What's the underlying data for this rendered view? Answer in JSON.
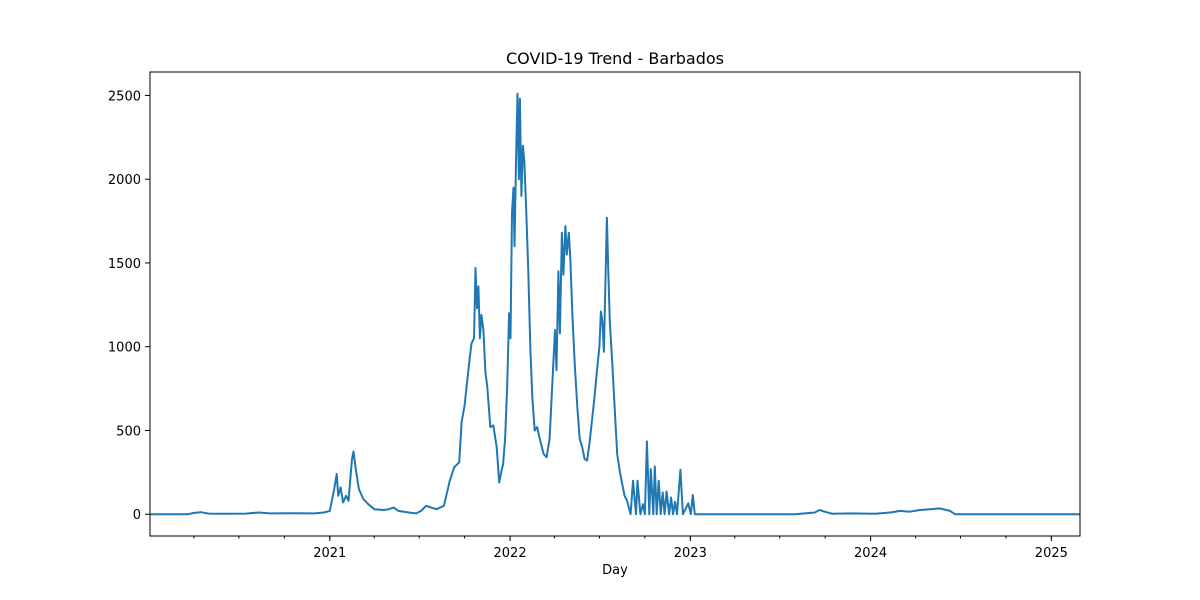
{
  "chart_data": {
    "type": "line",
    "title": "COVID-19 Trend - Barbados",
    "xlabel": "Day",
    "ylabel": "",
    "x_range": [
      "2020-01-03",
      "2025-02-28"
    ],
    "ylim": [
      -130,
      2640
    ],
    "y_ticks": [
      0,
      500,
      1000,
      1500,
      2000,
      2500
    ],
    "x_ticks": [
      {
        "date": "2021-01-01",
        "label": "2021"
      },
      {
        "date": "2022-01-01",
        "label": "2022"
      },
      {
        "date": "2023-01-01",
        "label": "2023"
      },
      {
        "date": "2024-01-01",
        "label": "2024"
      },
      {
        "date": "2025-01-01",
        "label": "2025"
      }
    ],
    "grid": false,
    "line_color": "#1f77b4",
    "series": [
      {
        "points": [
          [
            "2020-01-03",
            0
          ],
          [
            "2020-03-20",
            0
          ],
          [
            "2020-04-01",
            8
          ],
          [
            "2020-04-15",
            12
          ],
          [
            "2020-05-01",
            4
          ],
          [
            "2020-06-01",
            3
          ],
          [
            "2020-07-15",
            4
          ],
          [
            "2020-08-10",
            10
          ],
          [
            "2020-09-01",
            5
          ],
          [
            "2020-10-15",
            6
          ],
          [
            "2020-12-01",
            5
          ],
          [
            "2020-12-20",
            10
          ],
          [
            "2021-01-01",
            20
          ],
          [
            "2021-01-10",
            150
          ],
          [
            "2021-01-15",
            240
          ],
          [
            "2021-01-18",
            110
          ],
          [
            "2021-01-23",
            160
          ],
          [
            "2021-01-28",
            70
          ],
          [
            "2021-02-03",
            110
          ],
          [
            "2021-02-08",
            80
          ],
          [
            "2021-02-15",
            330
          ],
          [
            "2021-02-18",
            375
          ],
          [
            "2021-02-22",
            280
          ],
          [
            "2021-03-01",
            150
          ],
          [
            "2021-03-10",
            90
          ],
          [
            "2021-03-20",
            60
          ],
          [
            "2021-04-01",
            30
          ],
          [
            "2021-04-20",
            25
          ],
          [
            "2021-05-01",
            30
          ],
          [
            "2021-05-10",
            40
          ],
          [
            "2021-05-20",
            20
          ],
          [
            "2021-06-10",
            10
          ],
          [
            "2021-06-25",
            5
          ],
          [
            "2021-07-05",
            20
          ],
          [
            "2021-07-15",
            50
          ],
          [
            "2021-07-25",
            40
          ],
          [
            "2021-08-05",
            30
          ],
          [
            "2021-08-20",
            50
          ],
          [
            "2021-09-01",
            200
          ],
          [
            "2021-09-10",
            280
          ],
          [
            "2021-09-20",
            310
          ],
          [
            "2021-09-25",
            550
          ],
          [
            "2021-10-01",
            650
          ],
          [
            "2021-10-10",
            900
          ],
          [
            "2021-10-15",
            1020
          ],
          [
            "2021-10-20",
            1050
          ],
          [
            "2021-10-23",
            1470
          ],
          [
            "2021-10-26",
            1230
          ],
          [
            "2021-10-29",
            1360
          ],
          [
            "2021-11-01",
            1050
          ],
          [
            "2021-11-04",
            1190
          ],
          [
            "2021-11-08",
            1100
          ],
          [
            "2021-11-12",
            850
          ],
          [
            "2021-11-16",
            760
          ],
          [
            "2021-11-22",
            520
          ],
          [
            "2021-11-28",
            530
          ],
          [
            "2021-12-05",
            400
          ],
          [
            "2021-12-10",
            190
          ],
          [
            "2021-12-14",
            250
          ],
          [
            "2021-12-18",
            300
          ],
          [
            "2021-12-22",
            450
          ],
          [
            "2021-12-26",
            750
          ],
          [
            "2021-12-30",
            1200
          ],
          [
            "2022-01-02",
            1050
          ],
          [
            "2022-01-05",
            1800
          ],
          [
            "2022-01-08",
            1950
          ],
          [
            "2022-01-10",
            1600
          ],
          [
            "2022-01-13",
            2100
          ],
          [
            "2022-01-16",
            2510
          ],
          [
            "2022-01-19",
            2000
          ],
          [
            "2022-01-21",
            2480
          ],
          [
            "2022-01-24",
            1900
          ],
          [
            "2022-01-27",
            2200
          ],
          [
            "2022-01-30",
            2100
          ],
          [
            "2022-02-03",
            1800
          ],
          [
            "2022-02-07",
            1450
          ],
          [
            "2022-02-11",
            1000
          ],
          [
            "2022-02-15",
            700
          ],
          [
            "2022-02-20",
            500
          ],
          [
            "2022-02-25",
            520
          ],
          [
            "2022-03-02",
            450
          ],
          [
            "2022-03-10",
            360
          ],
          [
            "2022-03-16",
            340
          ],
          [
            "2022-03-22",
            450
          ],
          [
            "2022-03-28",
            800
          ],
          [
            "2022-04-02",
            1100
          ],
          [
            "2022-04-05",
            860
          ],
          [
            "2022-04-09",
            1450
          ],
          [
            "2022-04-12",
            1080
          ],
          [
            "2022-04-16",
            1680
          ],
          [
            "2022-04-19",
            1430
          ],
          [
            "2022-04-23",
            1720
          ],
          [
            "2022-04-26",
            1550
          ],
          [
            "2022-04-30",
            1680
          ],
          [
            "2022-05-03",
            1530
          ],
          [
            "2022-05-07",
            1200
          ],
          [
            "2022-05-12",
            900
          ],
          [
            "2022-05-17",
            650
          ],
          [
            "2022-05-22",
            450
          ],
          [
            "2022-05-27",
            400
          ],
          [
            "2022-06-01",
            330
          ],
          [
            "2022-06-06",
            320
          ],
          [
            "2022-06-11",
            430
          ],
          [
            "2022-06-16",
            560
          ],
          [
            "2022-06-21",
            700
          ],
          [
            "2022-06-26",
            860
          ],
          [
            "2022-07-01",
            1000
          ],
          [
            "2022-07-04",
            1210
          ],
          [
            "2022-07-07",
            1150
          ],
          [
            "2022-07-10",
            970
          ],
          [
            "2022-07-13",
            1380
          ],
          [
            "2022-07-16",
            1770
          ],
          [
            "2022-07-19",
            1450
          ],
          [
            "2022-07-22",
            1150
          ],
          [
            "2022-07-27",
            900
          ],
          [
            "2022-08-01",
            620
          ],
          [
            "2022-08-06",
            360
          ],
          [
            "2022-08-11",
            260
          ],
          [
            "2022-08-16",
            180
          ],
          [
            "2022-08-21",
            110
          ],
          [
            "2022-08-26",
            80
          ],
          [
            "2022-09-02",
            0
          ],
          [
            "2022-09-07",
            200
          ],
          [
            "2022-09-13",
            0
          ],
          [
            "2022-09-16",
            200
          ],
          [
            "2022-09-22",
            0
          ],
          [
            "2022-09-27",
            60
          ],
          [
            "2022-10-01",
            0
          ],
          [
            "2022-10-05",
            435
          ],
          [
            "2022-10-10",
            0
          ],
          [
            "2022-10-13",
            270
          ],
          [
            "2022-10-18",
            0
          ],
          [
            "2022-10-21",
            285
          ],
          [
            "2022-10-25",
            0
          ],
          [
            "2022-10-29",
            200
          ],
          [
            "2022-11-02",
            0
          ],
          [
            "2022-11-06",
            130
          ],
          [
            "2022-11-10",
            0
          ],
          [
            "2022-11-14",
            135
          ],
          [
            "2022-11-19",
            0
          ],
          [
            "2022-11-23",
            100
          ],
          [
            "2022-11-27",
            0
          ],
          [
            "2022-12-01",
            75
          ],
          [
            "2022-12-05",
            0
          ],
          [
            "2022-12-12",
            265
          ],
          [
            "2022-12-17",
            0
          ],
          [
            "2022-12-28",
            65
          ],
          [
            "2023-01-02",
            0
          ],
          [
            "2023-01-06",
            115
          ],
          [
            "2023-01-10",
            0
          ],
          [
            "2023-08-01",
            0
          ],
          [
            "2023-09-10",
            10
          ],
          [
            "2023-09-20",
            25
          ],
          [
            "2023-09-30",
            15
          ],
          [
            "2023-10-15",
            3
          ],
          [
            "2023-11-20",
            5
          ],
          [
            "2024-01-10",
            3
          ],
          [
            "2024-02-10",
            10
          ],
          [
            "2024-03-01",
            20
          ],
          [
            "2024-03-20",
            15
          ],
          [
            "2024-04-10",
            25
          ],
          [
            "2024-05-01",
            30
          ],
          [
            "2024-05-20",
            35
          ],
          [
            "2024-06-10",
            20
          ],
          [
            "2024-06-20",
            0
          ],
          [
            "2025-02-28",
            0
          ]
        ]
      }
    ]
  }
}
